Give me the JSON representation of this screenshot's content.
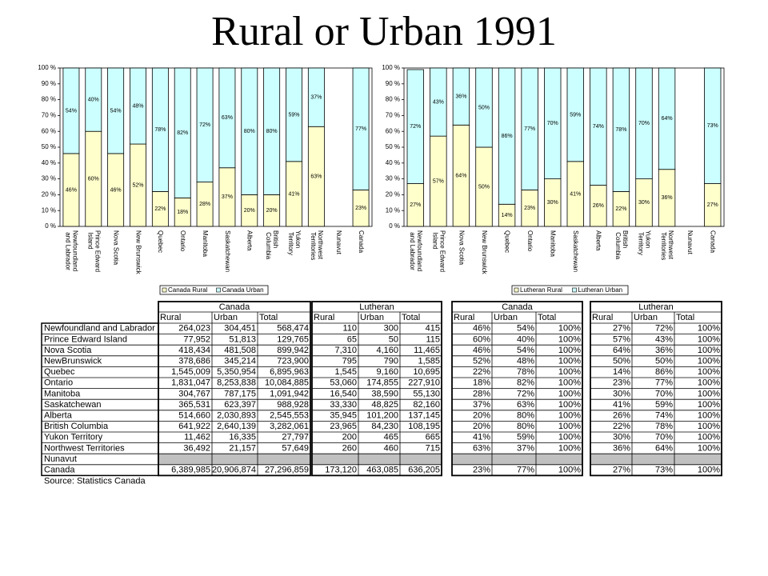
{
  "title": "Rural or Urban 1991",
  "chart_data": [
    {
      "type": "bar",
      "stacked": true,
      "categories": [
        "Newfoundland and Labrador",
        "Prince Edward Island",
        "Nova Scotia",
        "New Brunswick",
        "Quebec",
        "Ontario",
        "Manitoba",
        "Saskatchewan",
        "Alberta",
        "British Columbia",
        "Yukon Territory",
        "Northwest Territories",
        "Nunavut",
        "Canada"
      ],
      "series": [
        {
          "name": "Canada Rural",
          "color": "#ffffcc",
          "values": [
            46,
            60,
            46,
            52,
            22,
            18,
            28,
            37,
            20,
            20,
            41,
            63,
            null,
            23
          ],
          "value_labels": [
            "46%",
            "60%",
            "46%",
            "52%",
            "22%",
            "18%",
            "28%",
            "37%",
            "20%",
            "20%",
            "41%",
            "63%",
            null,
            "23%"
          ]
        },
        {
          "name": "Canada Urban",
          "color": "#ccffff",
          "values": [
            54,
            40,
            54,
            48,
            78,
            82,
            72,
            63,
            80,
            80,
            59,
            37,
            null,
            77
          ],
          "value_labels": [
            "54%",
            "40%",
            "54%",
            "48%",
            "78%",
            "82%",
            "72%",
            "63%",
            "80%",
            "80%",
            "59%",
            "37%",
            null,
            "77%"
          ]
        }
      ],
      "ylim": [
        0,
        100
      ],
      "yticks": [
        {
          "value": 0,
          "label": "0 %"
        },
        {
          "value": 10,
          "label": "10 %"
        },
        {
          "value": 20,
          "label": "20 %"
        },
        {
          "value": 30,
          "label": "30 %"
        },
        {
          "value": 40,
          "label": "40 %"
        },
        {
          "value": 50,
          "label": "50 %"
        },
        {
          "value": 60,
          "label": "60 %"
        },
        {
          "value": 70,
          "label": "70 %"
        },
        {
          "value": 80,
          "label": "80 %"
        },
        {
          "value": 90,
          "label": "90 %"
        },
        {
          "value": 100,
          "label": "100 %"
        }
      ],
      "legend": "bottom"
    },
    {
      "type": "bar",
      "stacked": true,
      "categories": [
        "Newfoundland and Labrador",
        "Prince Edward Island",
        "Nova Scotia",
        "New Brunswick",
        "Quebec",
        "Ontario",
        "Manitoba",
        "Saskatchewan",
        "Alberta",
        "British Columbia",
        "Yukon Territory",
        "Northwest Territories",
        "Nunavut",
        "Canada"
      ],
      "series": [
        {
          "name": "Lutheran Rural",
          "color": "#ffffcc",
          "values": [
            27,
            57,
            64,
            50,
            14,
            23,
            30,
            41,
            26,
            22,
            30,
            36,
            null,
            27
          ],
          "value_labels": [
            "27%",
            "57%",
            "64%",
            "50%",
            "14%",
            "23%",
            "30%",
            "41%",
            "26%",
            "22%",
            "30%",
            "36%",
            null,
            "27%"
          ]
        },
        {
          "name": "Lutheran Urban",
          "color": "#ccffff",
          "values": [
            72,
            43,
            36,
            50,
            86,
            77,
            70,
            59,
            74,
            78,
            70,
            64,
            null,
            73
          ],
          "value_labels": [
            "72%",
            "43%",
            "36%",
            "50%",
            "86%",
            "77%",
            "70%",
            "59%",
            "74%",
            "78%",
            "70%",
            "64%",
            null,
            "73%"
          ]
        }
      ],
      "ylim": [
        0,
        100
      ],
      "yticks": [
        {
          "value": 0,
          "label": "0 %"
        },
        {
          "value": 10,
          "label": "10 %"
        },
        {
          "value": 20,
          "label": "20 %"
        },
        {
          "value": 30,
          "label": "30 %"
        },
        {
          "value": 40,
          "label": "40 %"
        },
        {
          "value": 50,
          "label": "50 %"
        },
        {
          "value": 60,
          "label": "60 %"
        },
        {
          "value": 70,
          "label": "70 %"
        },
        {
          "value": 80,
          "label": "80 %"
        },
        {
          "value": 90,
          "label": "90 %"
        },
        {
          "value": 100,
          "label": "100 %"
        }
      ],
      "legend": "bottom"
    }
  ],
  "tables": {
    "row_labels": [
      "Newfoundland and Labrador",
      "Prince Edward Island",
      "Nova Scotia",
      "NewBrunswick",
      "Quebec",
      "Ontario",
      "Manitoba",
      "Saskatchewan",
      "Alberta",
      "British Columbia",
      "Yukon Territory",
      "Northwest Territories",
      "Nunavut",
      "Canada"
    ],
    "blocks": [
      {
        "title": "Canada",
        "columns": [
          "Rural",
          "Urban",
          "Total"
        ],
        "rows": [
          [
            "264,023",
            "304,451",
            "568,474"
          ],
          [
            "77,952",
            "51,813",
            "129,765"
          ],
          [
            "418,434",
            "481,508",
            "899,942"
          ],
          [
            "378,686",
            "345,214",
            "723,900"
          ],
          [
            "1,545,009",
            "5,350,954",
            "6,895,963"
          ],
          [
            "1,831,047",
            "8,253,838",
            "10,084,885"
          ],
          [
            "304,767",
            "787,175",
            "1,091,942"
          ],
          [
            "365,531",
            "623,397",
            "988,928"
          ],
          [
            "514,660",
            "2,030,893",
            "2,545,553"
          ],
          [
            "641,922",
            "2,640,139",
            "3,282,061"
          ],
          [
            "11,462",
            "16,335",
            "27,797"
          ],
          [
            "36,492",
            "21,157",
            "57,649"
          ],
          [
            null,
            null,
            null
          ],
          [
            "6,389,985",
            "20,906,874",
            "27,296,859"
          ]
        ]
      },
      {
        "title": "Lutheran",
        "columns": [
          "Rural",
          "Urban",
          "Total"
        ],
        "rows": [
          [
            "110",
            "300",
            "415"
          ],
          [
            "65",
            "50",
            "115"
          ],
          [
            "7,310",
            "4,160",
            "11,465"
          ],
          [
            "795",
            "790",
            "1,585"
          ],
          [
            "1,545",
            "9,160",
            "10,695"
          ],
          [
            "53,060",
            "174,855",
            "227,910"
          ],
          [
            "16,540",
            "38,590",
            "55,130"
          ],
          [
            "33,330",
            "48,825",
            "82,160"
          ],
          [
            "35,945",
            "101,200",
            "137,145"
          ],
          [
            "23,965",
            "84,230",
            "108,195"
          ],
          [
            "200",
            "465",
            "665"
          ],
          [
            "260",
            "460",
            "715"
          ],
          [
            null,
            null,
            null
          ],
          [
            "173,120",
            "463,085",
            "636,205"
          ]
        ]
      },
      {
        "title": "Canada",
        "columns": [
          "Rural",
          "Urban",
          "Total"
        ],
        "rows": [
          [
            "46%",
            "54%",
            "100%"
          ],
          [
            "60%",
            "40%",
            "100%"
          ],
          [
            "46%",
            "54%",
            "100%"
          ],
          [
            "52%",
            "48%",
            "100%"
          ],
          [
            "22%",
            "78%",
            "100%"
          ],
          [
            "18%",
            "82%",
            "100%"
          ],
          [
            "28%",
            "72%",
            "100%"
          ],
          [
            "37%",
            "63%",
            "100%"
          ],
          [
            "20%",
            "80%",
            "100%"
          ],
          [
            "20%",
            "80%",
            "100%"
          ],
          [
            "41%",
            "59%",
            "100%"
          ],
          [
            "63%",
            "37%",
            "100%"
          ],
          [
            null,
            null,
            null
          ],
          [
            "23%",
            "77%",
            "100%"
          ]
        ]
      },
      {
        "title": "Lutheran",
        "columns": [
          "Rural",
          "Urban",
          "Total"
        ],
        "rows": [
          [
            "27%",
            "72%",
            "100%"
          ],
          [
            "57%",
            "43%",
            "100%"
          ],
          [
            "64%",
            "36%",
            "100%"
          ],
          [
            "50%",
            "50%",
            "100%"
          ],
          [
            "14%",
            "86%",
            "100%"
          ],
          [
            "23%",
            "77%",
            "100%"
          ],
          [
            "30%",
            "70%",
            "100%"
          ],
          [
            "41%",
            "59%",
            "100%"
          ],
          [
            "26%",
            "74%",
            "100%"
          ],
          [
            "22%",
            "78%",
            "100%"
          ],
          [
            "30%",
            "70%",
            "100%"
          ],
          [
            "36%",
            "64%",
            "100%"
          ],
          [
            null,
            null,
            null
          ],
          [
            "27%",
            "73%",
            "100%"
          ]
        ]
      }
    ]
  },
  "source": "Source: Statistics Canada"
}
